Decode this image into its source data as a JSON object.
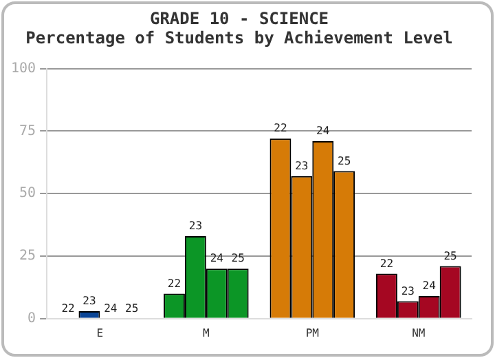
{
  "chart_data": {
    "type": "bar",
    "title": "GRADE 10 - SCIENCE",
    "subtitle": "Percentage of Students by Achievement Level",
    "categories": [
      "E",
      "M",
      "PM",
      "NM"
    ],
    "series": [
      {
        "name": "22",
        "colors": [
          "#0b4596",
          "#0c9626",
          "#d67b07",
          "#a50722"
        ],
        "values": [
          0,
          10,
          72,
          18
        ]
      },
      {
        "name": "23",
        "colors": [
          "#0b4596",
          "#0c9626",
          "#d67b07",
          "#a50722"
        ],
        "values": [
          3,
          33,
          57,
          7
        ]
      },
      {
        "name": "24",
        "colors": [
          "#0b4596",
          "#0c9626",
          "#d67b07",
          "#a50722"
        ],
        "values": [
          0,
          20,
          71,
          9
        ]
      },
      {
        "name": "25",
        "colors": [
          "#0b4596",
          "#0c9626",
          "#d67b07",
          "#a50722"
        ],
        "values": [
          0,
          20,
          59,
          21
        ]
      }
    ],
    "ylim": [
      0,
      100
    ],
    "yticks": [
      0,
      25,
      50,
      75,
      100
    ],
    "grid": "y",
    "legend": false
  }
}
